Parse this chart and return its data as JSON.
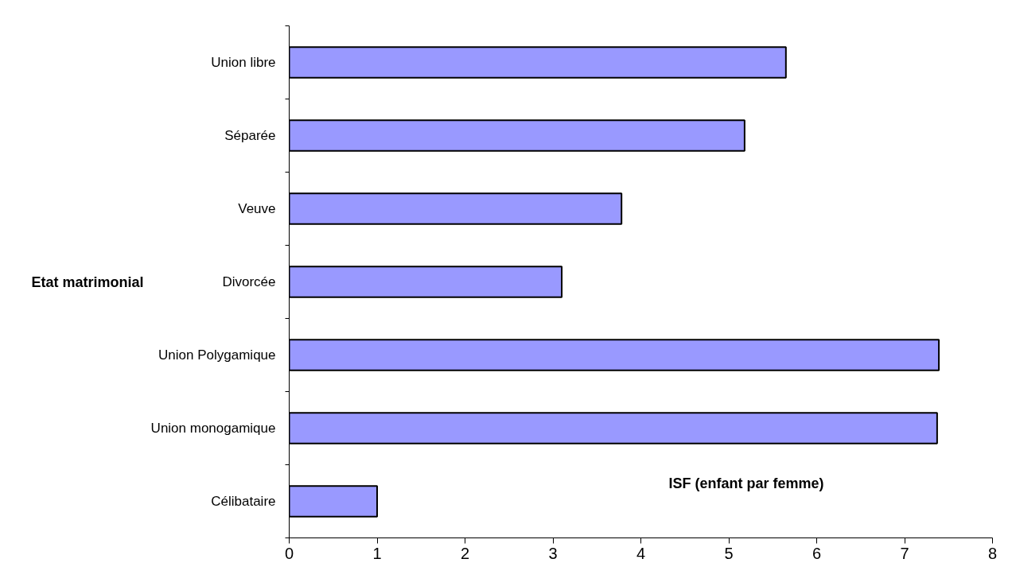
{
  "chart_data": {
    "type": "bar",
    "orientation": "horizontal",
    "xlabel": "ISF (enfant par femme)",
    "ylabel": "Etat matrimonial",
    "categories": [
      "Union libre",
      "Séparée",
      "Veuve",
      "Divorcée",
      "Union Polygamique",
      "Union monogamique",
      "Célibataire"
    ],
    "values": [
      5.65,
      5.18,
      3.78,
      3.1,
      7.39,
      7.37,
      1.0
    ],
    "color": "#9999ff",
    "xlim": [
      0,
      8
    ],
    "xticks": [
      0,
      1,
      2,
      3,
      4,
      5,
      6,
      7,
      8
    ],
    "grid": false
  }
}
